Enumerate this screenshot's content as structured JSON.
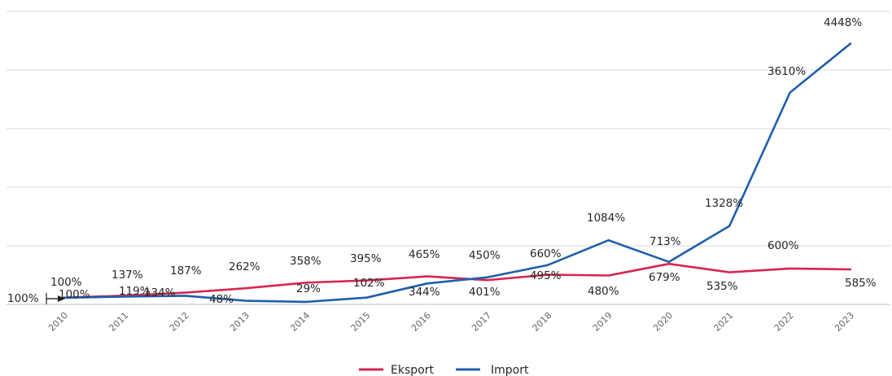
{
  "chart_data": {
    "type": "line",
    "categories": [
      "2010",
      "2011",
      "2012",
      "2013",
      "2014",
      "2015",
      "2016",
      "2017",
      "2018",
      "2019",
      "2020",
      "2021",
      "2022",
      "2023"
    ],
    "ylim": [
      -100,
      5000
    ],
    "grid": true,
    "legend_position": "bottom-center",
    "series": [
      {
        "name": "Eksport",
        "color": "#d6264f",
        "values": [
          100,
          137,
          187,
          262,
          358,
          395,
          465,
          401,
          495,
          480,
          679,
          535,
          600,
          585
        ],
        "labels": [
          "100%",
          "137%",
          "187%",
          "262%",
          "358%",
          "395%",
          "465%",
          "401%",
          "495%",
          "480%",
          "679%",
          "535%",
          "600%",
          "585%"
        ]
      },
      {
        "name": "Import",
        "color": "#1f5fad",
        "values": [
          100,
          119,
          134,
          48,
          29,
          102,
          344,
          450,
          660,
          1084,
          713,
          1328,
          3610,
          4448
        ],
        "labels": [
          "100%",
          "119%",
          "134%",
          "48%",
          "29%",
          "102%",
          "344%",
          "450%",
          "660%",
          "1084%",
          "713%",
          "1328%",
          "3610%",
          "4448%"
        ]
      }
    ],
    "start_marker_label": "100%"
  }
}
